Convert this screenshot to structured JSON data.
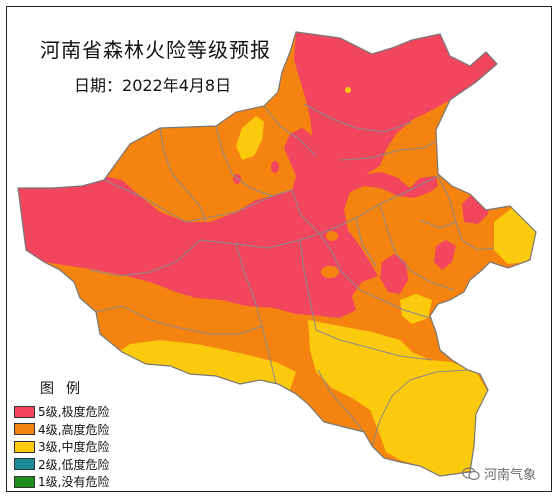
{
  "title": "河南省森林火险等级预报",
  "date_label": "日期：",
  "date_value": "2022年4月8日",
  "legend": {
    "title": "图例",
    "items": [
      {
        "level": 5,
        "label": "5级,极度危险",
        "color": "#f2465f"
      },
      {
        "level": 4,
        "label": "4级,高度危险",
        "color": "#f5830f"
      },
      {
        "level": 3,
        "label": "3级,中度危险",
        "color": "#fcca0c"
      },
      {
        "level": 2,
        "label": "2级,低度危险",
        "color": "#1b8c95"
      },
      {
        "level": 1,
        "label": "1级,没有危险",
        "color": "#1e8f1e"
      }
    ]
  },
  "watermark": {
    "text": "河南气象",
    "icon": "wechat-icon"
  },
  "colors": {
    "boundary": "#8a8a8a",
    "background": "#ffffff"
  }
}
